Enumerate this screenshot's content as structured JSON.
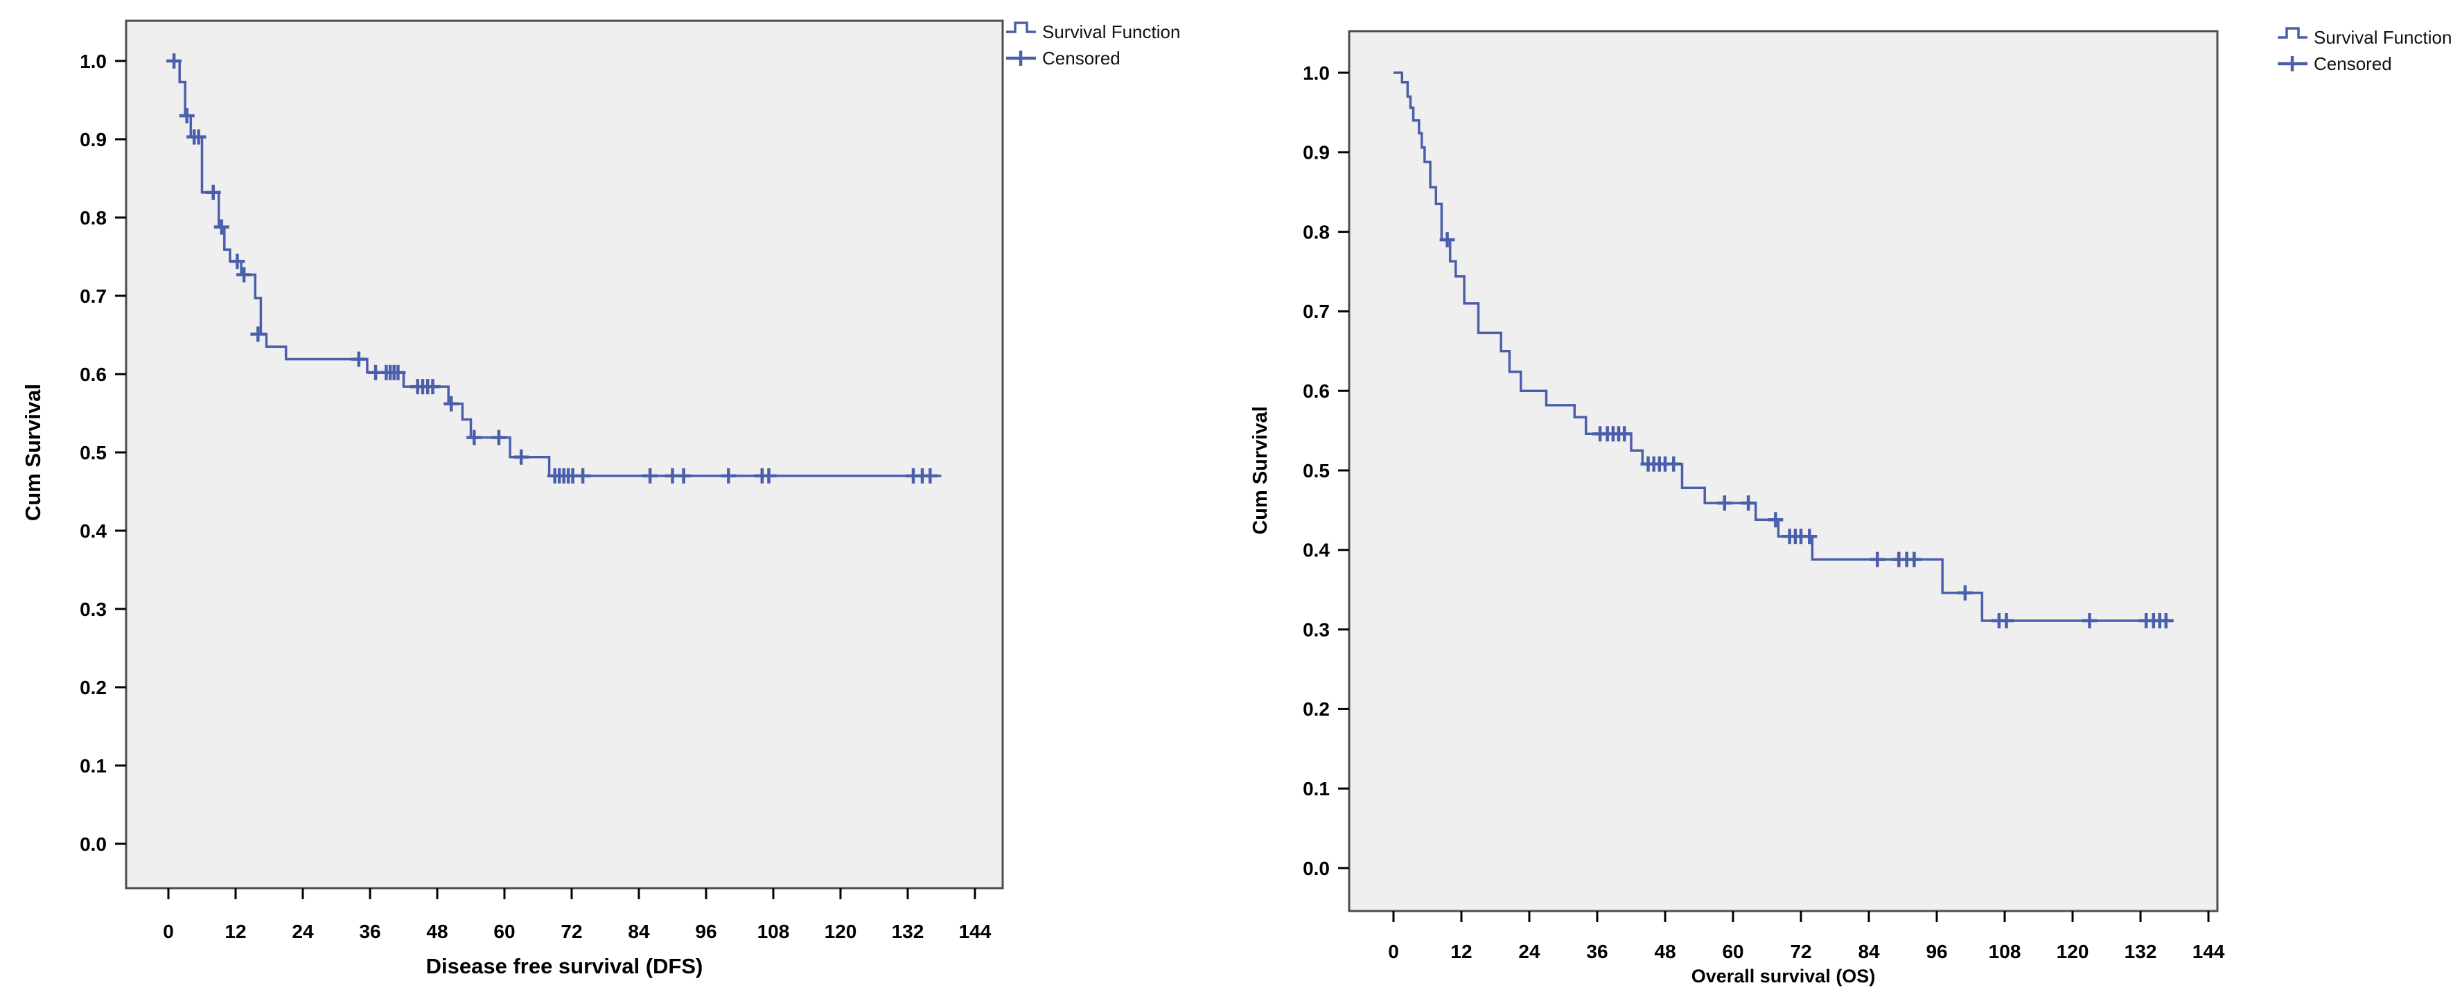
{
  "figure": {
    "panel_count": 2,
    "legend_labels": [
      "Survival Function",
      "Censored"
    ]
  },
  "colors": {
    "line": "#4a5fac",
    "censor": "#4a5fac",
    "plot_bg": "#efefef",
    "plot_border": "#4c4c4c",
    "tick": "#000000",
    "text": "#000000"
  },
  "chart_data": [
    {
      "type": "line",
      "subtype": "kaplan-meier-step",
      "title": "",
      "xlabel": "Disease free survival (DFS)",
      "ylabel": "Cum Survival",
      "legend": [
        "Survival Function",
        "Censored"
      ],
      "xticks": [
        0,
        12,
        24,
        36,
        48,
        60,
        72,
        84,
        96,
        108,
        120,
        132,
        144
      ],
      "yticks": [
        1.0,
        0.9,
        0.8,
        0.7,
        0.6,
        0.5,
        0.4,
        0.3,
        0.2,
        0.1,
        0.0
      ],
      "xlim": [
        -8,
        149
      ],
      "ylim": [
        -0.06,
        1.08
      ],
      "grid": false,
      "legend_position": "outside-top-right",
      "steps": [
        [
          0,
          1.0
        ],
        [
          2,
          0.973
        ],
        [
          3,
          0.93
        ],
        [
          4,
          0.903
        ],
        [
          6,
          0.832
        ],
        [
          9,
          0.788
        ],
        [
          10,
          0.759
        ],
        [
          11,
          0.744
        ],
        [
          13,
          0.727
        ],
        [
          15.5,
          0.697
        ],
        [
          16.5,
          0.651
        ],
        [
          17.5,
          0.635
        ],
        [
          21,
          0.619
        ],
        [
          35.5,
          0.602
        ],
        [
          42,
          0.584
        ],
        [
          50,
          0.562
        ],
        [
          52.5,
          0.542
        ],
        [
          54,
          0.519
        ],
        [
          61,
          0.494
        ],
        [
          68,
          0.47
        ],
        [
          138,
          0.47
        ]
      ],
      "censored": [
        [
          1,
          1.0
        ],
        [
          3.3,
          0.93
        ],
        [
          4.6,
          0.903
        ],
        [
          5.4,
          0.903
        ],
        [
          8,
          0.832
        ],
        [
          9.5,
          0.788
        ],
        [
          12.3,
          0.744
        ],
        [
          13.5,
          0.727
        ],
        [
          16,
          0.651
        ],
        [
          34,
          0.619
        ],
        [
          37,
          0.602
        ],
        [
          38.9,
          0.602
        ],
        [
          39.6,
          0.602
        ],
        [
          40.3,
          0.602
        ],
        [
          41,
          0.602
        ],
        [
          44.5,
          0.584
        ],
        [
          45.4,
          0.584
        ],
        [
          46.3,
          0.584
        ],
        [
          47.2,
          0.584
        ],
        [
          50.5,
          0.562
        ],
        [
          54.6,
          0.519
        ],
        [
          59,
          0.519
        ],
        [
          63,
          0.494
        ],
        [
          69,
          0.47
        ],
        [
          69.8,
          0.47
        ],
        [
          70.6,
          0.47
        ],
        [
          71.4,
          0.47
        ],
        [
          72.2,
          0.47
        ],
        [
          74,
          0.47
        ],
        [
          86,
          0.47
        ],
        [
          90,
          0.47
        ],
        [
          92,
          0.47
        ],
        [
          100,
          0.47
        ],
        [
          106,
          0.47
        ],
        [
          107.2,
          0.47
        ],
        [
          133,
          0.47
        ],
        [
          134.6,
          0.47
        ],
        [
          136,
          0.47
        ]
      ]
    },
    {
      "type": "line",
      "subtype": "kaplan-meier-step",
      "title": "",
      "xlabel": "Overall survival (OS)",
      "ylabel": "Cum Survival",
      "legend": [
        "Survival Function",
        "Censored"
      ],
      "xticks": [
        0,
        12,
        24,
        36,
        48,
        60,
        72,
        84,
        96,
        108,
        120,
        132,
        144
      ],
      "yticks": [
        1.0,
        0.9,
        0.8,
        0.7,
        0.6,
        0.5,
        0.4,
        0.3,
        0.2,
        0.1,
        0.0
      ],
      "xlim": [
        -8,
        146
      ],
      "ylim": [
        -0.06,
        1.08
      ],
      "grid": false,
      "legend_position": "outside-top-right",
      "steps": [
        [
          0,
          1.0
        ],
        [
          1.5,
          0.988
        ],
        [
          2.5,
          0.97
        ],
        [
          3,
          0.956
        ],
        [
          3.5,
          0.94
        ],
        [
          4.5,
          0.924
        ],
        [
          5,
          0.906
        ],
        [
          5.5,
          0.888
        ],
        [
          6.5,
          0.856
        ],
        [
          7.5,
          0.835
        ],
        [
          8.5,
          0.79
        ],
        [
          10,
          0.763
        ],
        [
          11,
          0.744
        ],
        [
          12.5,
          0.71
        ],
        [
          15,
          0.673
        ],
        [
          19,
          0.65
        ],
        [
          20.5,
          0.624
        ],
        [
          22.5,
          0.6
        ],
        [
          27,
          0.582
        ],
        [
          32,
          0.567
        ],
        [
          34,
          0.546
        ],
        [
          42,
          0.525
        ],
        [
          44,
          0.508
        ],
        [
          51,
          0.478
        ],
        [
          55,
          0.459
        ],
        [
          64,
          0.438
        ],
        [
          68,
          0.417
        ],
        [
          74,
          0.388
        ],
        [
          97,
          0.346
        ],
        [
          104,
          0.311
        ],
        [
          137,
          0.311
        ]
      ],
      "censored": [
        [
          9.5,
          0.79
        ],
        [
          36.5,
          0.546
        ],
        [
          37.8,
          0.546
        ],
        [
          38.8,
          0.546
        ],
        [
          39.8,
          0.546
        ],
        [
          40.8,
          0.546
        ],
        [
          45,
          0.508
        ],
        [
          46,
          0.508
        ],
        [
          47,
          0.508
        ],
        [
          48,
          0.508
        ],
        [
          49.5,
          0.508
        ],
        [
          58.5,
          0.459
        ],
        [
          62.7,
          0.459
        ],
        [
          67.5,
          0.438
        ],
        [
          70,
          0.417
        ],
        [
          71,
          0.417
        ],
        [
          72,
          0.417
        ],
        [
          73.5,
          0.417
        ],
        [
          85.5,
          0.388
        ],
        [
          89.3,
          0.388
        ],
        [
          90.7,
          0.388
        ],
        [
          92,
          0.388
        ],
        [
          101,
          0.346
        ],
        [
          107,
          0.311
        ],
        [
          108.3,
          0.311
        ],
        [
          123,
          0.311
        ],
        [
          133,
          0.311
        ],
        [
          134.3,
          0.311
        ],
        [
          135.4,
          0.311
        ],
        [
          136.5,
          0.311
        ]
      ]
    }
  ]
}
